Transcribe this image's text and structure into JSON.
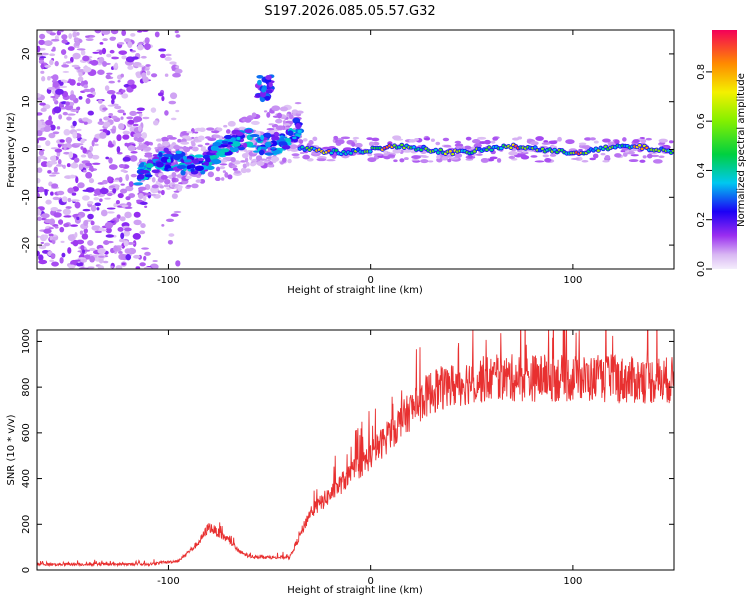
{
  "title": "S197.2026.085.05.57.G32",
  "chart_data": [
    {
      "type": "heatmap",
      "xlabel": "Height of straight line (km)",
      "ylabel": "Frequency (Hz)",
      "xlim": [
        -165,
        150
      ],
      "ylim": [
        -25,
        25
      ],
      "xticks": [
        -100,
        0,
        100
      ],
      "yticks": [
        -20,
        -10,
        0,
        10,
        20
      ],
      "colorbar": {
        "label": "Normalized spectral amplitude",
        "range": [
          0,
          0.97
        ],
        "ticks": [
          0.0,
          0.2,
          0.4,
          0.6,
          0.8
        ]
      },
      "features": [
        {
          "name": "noise region",
          "x_range": [
            -165,
            -115
          ],
          "freq_spread_hz": 25
        },
        {
          "name": "wandering signal",
          "x_range": [
            -115,
            -35
          ],
          "freq_start_hz": -5,
          "freq_end_hz": 4
        },
        {
          "name": "side feature",
          "x": -52,
          "freq_hz": 13
        },
        {
          "name": "carrier line",
          "x_range": [
            -35,
            150
          ],
          "freq_hz": 0
        }
      ]
    },
    {
      "type": "line",
      "xlabel": "Height of straight line (km)",
      "ylabel": "SNR (10 * v/v)",
      "xlim": [
        -165,
        150
      ],
      "ylim": [
        0,
        1050
      ],
      "xticks": [
        -100,
        0,
        100
      ],
      "yticks": [
        0,
        200,
        400,
        600,
        800,
        1000
      ],
      "series": [
        {
          "name": "SNR",
          "color": "#e83030",
          "x": [
            -165,
            -150,
            -130,
            -110,
            -95,
            -85,
            -80,
            -75,
            -70,
            -65,
            -60,
            -50,
            -40,
            -35,
            -30,
            -20,
            -10,
            0,
            10,
            20,
            30,
            50,
            70,
            90,
            110,
            130,
            150
          ],
          "values": [
            25,
            25,
            25,
            25,
            40,
            120,
            190,
            160,
            130,
            80,
            60,
            55,
            55,
            150,
            250,
            330,
            420,
            500,
            600,
            700,
            780,
            830,
            840,
            840,
            835,
            830,
            830
          ]
        }
      ]
    }
  ]
}
